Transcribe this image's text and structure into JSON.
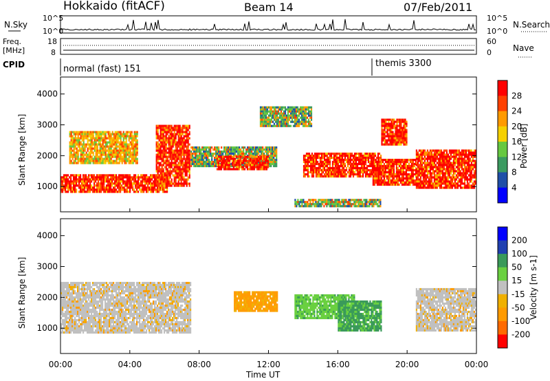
{
  "header": {
    "station": "Hokkaido (fitACF)",
    "beam": "Beam 14",
    "date": "07/Feb/2011"
  },
  "nsky_panel": {
    "left_label": "N.Sky",
    "right_label": "N.Search",
    "ticks_left": [
      "10^5",
      "10^0"
    ],
    "ticks_right": [
      "10^5",
      "10^0"
    ]
  },
  "freq_panel": {
    "left_label_line1": "Freq.",
    "left_label_line2": "[MHz]",
    "right_label": "Nave",
    "ticks_left": [
      "18",
      "8"
    ],
    "ticks_right": [
      "60",
      "0"
    ]
  },
  "cpid_panel": {
    "label": "CPID",
    "modes": [
      {
        "text": "normal (fast) 151",
        "start_hour": 0
      },
      {
        "text": "themis 3300",
        "start_hour": 18
      }
    ]
  },
  "power_panel": {
    "ylabel": "Slant Range [km]",
    "yticks": [
      "4000",
      "3000",
      "2000",
      "1000"
    ],
    "colorbar_label": "Power [dB]",
    "colorbar_ticks": [
      "28",
      "24",
      "20",
      "16",
      "12",
      "8",
      "4"
    ]
  },
  "velocity_panel": {
    "ylabel": "Slant Range [km]",
    "yticks": [
      "4000",
      "3000",
      "2000",
      "1000"
    ],
    "colorbar_label": "Velocity [m s-1]",
    "colorbar_ticks": [
      "200",
      "100",
      "50",
      "15",
      "-15",
      "-50",
      "-100",
      "-200"
    ]
  },
  "x_axis": {
    "label": "Time UT",
    "ticks": [
      "00:00",
      "04:00",
      "08:00",
      "12:00",
      "16:00",
      "20:00",
      "00:00"
    ]
  },
  "colors": {
    "power_scale": [
      "#0000ff",
      "#1f4fa8",
      "#3b9a60",
      "#66c840",
      "#f5d000",
      "#ff9a00",
      "#ff4000",
      "#ff0000"
    ],
    "velocity_scale": [
      "#ff0000",
      "#ff6a00",
      "#ff9a00",
      "#f0b000",
      "#c0c0c0",
      "#6ad040",
      "#3a9a5a",
      "#2040b0",
      "#0000ff"
    ]
  },
  "chart_data": {
    "type": "heatmap",
    "x_range_hours": [
      0,
      24
    ],
    "y_range_km": [
      180,
      4550
    ],
    "power_regions": [
      {
        "t": [
          0,
          6.2
        ],
        "r": [
          800,
          1400
        ],
        "level": "high"
      },
      {
        "t": [
          5.5,
          7.5
        ],
        "r": [
          1000,
          3000
        ],
        "level": "high"
      },
      {
        "t": [
          0.5,
          4.5
        ],
        "r": [
          1700,
          2800
        ],
        "level": "mixed"
      },
      {
        "t": [
          7.5,
          12.5
        ],
        "r": [
          1600,
          2300
        ],
        "level": "medium"
      },
      {
        "t": [
          9,
          12
        ],
        "r": [
          1500,
          2000
        ],
        "level": "high"
      },
      {
        "t": [
          11.5,
          14.5
        ],
        "r": [
          2900,
          3600
        ],
        "level": "medium"
      },
      {
        "t": [
          13.5,
          18.5
        ],
        "r": [
          300,
          600
        ],
        "level": "medium"
      },
      {
        "t": [
          14,
          18.5
        ],
        "r": [
          1300,
          2100
        ],
        "level": "high"
      },
      {
        "t": [
          18,
          20.5
        ],
        "r": [
          1000,
          1900
        ],
        "level": "high"
      },
      {
        "t": [
          18.5,
          20
        ],
        "r": [
          2300,
          3200
        ],
        "level": "high"
      },
      {
        "t": [
          20.5,
          24
        ],
        "r": [
          900,
          2200
        ],
        "level": "high"
      }
    ],
    "velocity_regions": [
      {
        "t": [
          0,
          7.5
        ],
        "r": [
          800,
          2500
        ],
        "v": "near-zero"
      },
      {
        "t": [
          10,
          12.5
        ],
        "r": [
          1500,
          2200
        ],
        "v": "-30"
      },
      {
        "t": [
          13.5,
          17
        ],
        "r": [
          1300,
          2100
        ],
        "v": "+30"
      },
      {
        "t": [
          16,
          18.5
        ],
        "r": [
          900,
          1900
        ],
        "v": "+70"
      },
      {
        "t": [
          20.5,
          24
        ],
        "r": [
          900,
          2300
        ],
        "v": "near-zero"
      }
    ]
  }
}
